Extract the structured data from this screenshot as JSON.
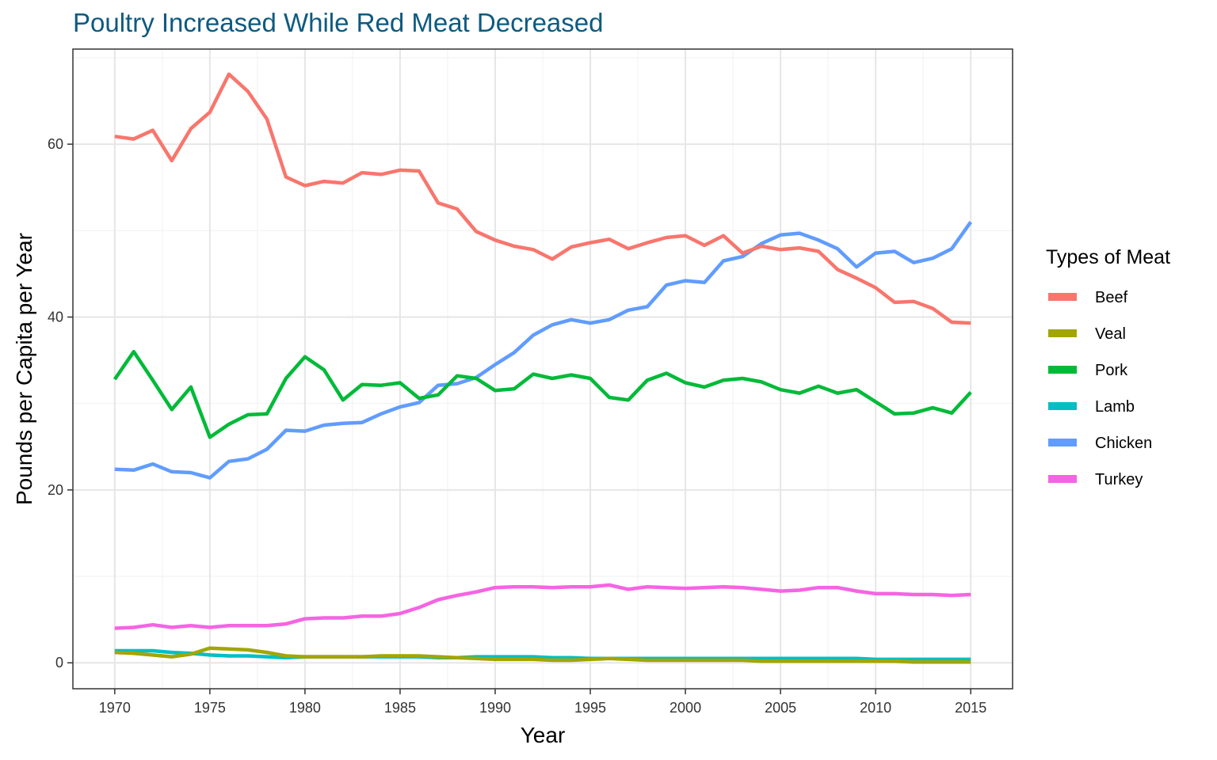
{
  "chart_data": {
    "type": "line",
    "title": "Poultry Increased While Red Meat Decreased",
    "xlabel": "Year",
    "ylabel": "Pounds per Capita per Year",
    "legend_title": "Types of Meat",
    "legend_position": "right",
    "grid": true,
    "xlim": [
      1967.8,
      2017.2
    ],
    "ylim": [
      -3,
      71
    ],
    "x_ticks": [
      1970,
      1975,
      1980,
      1985,
      1990,
      1995,
      2000,
      2005,
      2010,
      2015
    ],
    "y_ticks": [
      0,
      20,
      40,
      60
    ],
    "x": [
      1970,
      1971,
      1972,
      1973,
      1974,
      1975,
      1976,
      1977,
      1978,
      1979,
      1980,
      1981,
      1982,
      1983,
      1984,
      1985,
      1986,
      1987,
      1988,
      1989,
      1990,
      1991,
      1992,
      1993,
      1994,
      1995,
      1996,
      1997,
      1998,
      1999,
      2000,
      2001,
      2002,
      2003,
      2004,
      2005,
      2006,
      2007,
      2008,
      2009,
      2010,
      2011,
      2012,
      2013,
      2014,
      2015
    ],
    "series": [
      {
        "name": "Beef",
        "color": "#f8766d",
        "values": [
          60.9,
          60.6,
          61.6,
          58.1,
          61.8,
          63.7,
          68.1,
          66.1,
          62.9,
          56.2,
          55.2,
          55.7,
          55.5,
          56.7,
          56.5,
          57.0,
          56.9,
          53.2,
          52.5,
          49.9,
          48.9,
          48.2,
          47.8,
          46.7,
          48.1,
          48.6,
          49.0,
          47.9,
          48.6,
          49.2,
          49.4,
          48.3,
          49.4,
          47.4,
          48.2,
          47.8,
          48.0,
          47.6,
          45.5,
          44.5,
          43.4,
          41.7,
          41.8,
          41.0,
          39.4,
          39.3
        ]
      },
      {
        "name": "Veal",
        "color": "#a3a500",
        "values": [
          1.2,
          1.1,
          0.9,
          0.7,
          1.0,
          1.7,
          1.6,
          1.5,
          1.2,
          0.8,
          0.7,
          0.7,
          0.7,
          0.7,
          0.8,
          0.8,
          0.8,
          0.7,
          0.6,
          0.5,
          0.4,
          0.4,
          0.4,
          0.3,
          0.3,
          0.4,
          0.5,
          0.4,
          0.3,
          0.3,
          0.3,
          0.3,
          0.3,
          0.3,
          0.2,
          0.2,
          0.2,
          0.2,
          0.2,
          0.2,
          0.2,
          0.2,
          0.1,
          0.1,
          0.1,
          0.1
        ]
      },
      {
        "name": "Pork",
        "color": "#00ba38",
        "values": [
          32.8,
          36.0,
          32.7,
          29.3,
          31.9,
          26.1,
          27.6,
          28.7,
          28.8,
          32.9,
          35.4,
          33.9,
          30.4,
          32.2,
          32.1,
          32.4,
          30.6,
          31.0,
          33.2,
          32.9,
          31.5,
          31.7,
          33.4,
          32.9,
          33.3,
          32.9,
          30.7,
          30.4,
          32.7,
          33.5,
          32.4,
          31.9,
          32.7,
          32.9,
          32.5,
          31.6,
          31.2,
          32.0,
          31.2,
          31.6,
          30.2,
          28.8,
          28.9,
          29.5,
          28.9,
          31.3
        ]
      },
      {
        "name": "Lamb",
        "color": "#00bfc4",
        "values": [
          1.4,
          1.4,
          1.4,
          1.2,
          1.1,
          0.9,
          0.8,
          0.8,
          0.7,
          0.6,
          0.7,
          0.7,
          0.7,
          0.7,
          0.7,
          0.7,
          0.7,
          0.6,
          0.6,
          0.7,
          0.7,
          0.7,
          0.7,
          0.6,
          0.6,
          0.5,
          0.5,
          0.5,
          0.5,
          0.5,
          0.5,
          0.5,
          0.5,
          0.5,
          0.5,
          0.5,
          0.5,
          0.5,
          0.5,
          0.5,
          0.4,
          0.4,
          0.4,
          0.4,
          0.4,
          0.4
        ]
      },
      {
        "name": "Chicken",
        "color": "#619cff",
        "values": [
          22.4,
          22.3,
          23.0,
          22.1,
          22.0,
          21.4,
          23.3,
          23.6,
          24.7,
          26.9,
          26.8,
          27.5,
          27.7,
          27.8,
          28.8,
          29.6,
          30.1,
          32.1,
          32.3,
          33.0,
          34.5,
          35.9,
          37.9,
          39.1,
          39.7,
          39.3,
          39.7,
          40.8,
          41.2,
          43.7,
          44.2,
          44.0,
          46.5,
          47.0,
          48.5,
          49.5,
          49.7,
          48.9,
          47.9,
          45.8,
          47.4,
          47.6,
          46.3,
          46.8,
          47.9,
          51.0
        ]
      },
      {
        "name": "Turkey",
        "color": "#f564e3",
        "values": [
          4.0,
          4.1,
          4.4,
          4.1,
          4.3,
          4.1,
          4.3,
          4.3,
          4.3,
          4.5,
          5.1,
          5.2,
          5.2,
          5.4,
          5.4,
          5.7,
          6.4,
          7.3,
          7.8,
          8.2,
          8.7,
          8.8,
          8.8,
          8.7,
          8.8,
          8.8,
          9.0,
          8.5,
          8.8,
          8.7,
          8.6,
          8.7,
          8.8,
          8.7,
          8.5,
          8.3,
          8.4,
          8.7,
          8.7,
          8.3,
          8.0,
          8.0,
          7.9,
          7.9,
          7.8,
          7.9
        ]
      }
    ]
  }
}
